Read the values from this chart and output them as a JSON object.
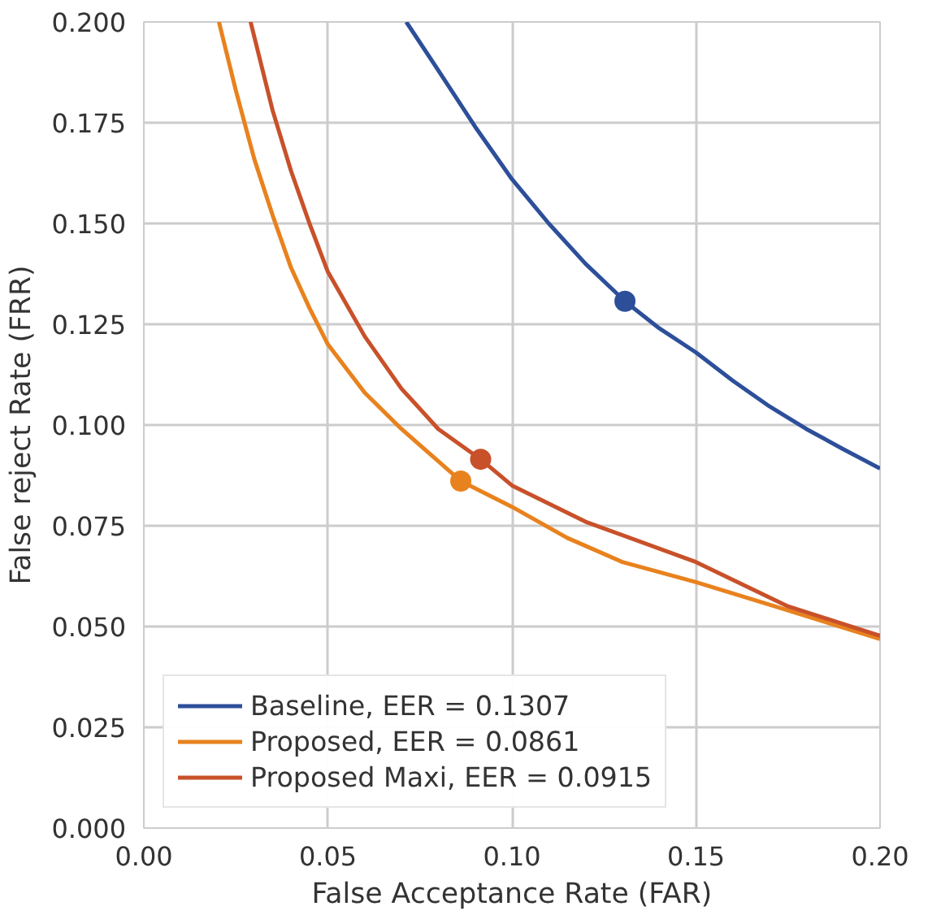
{
  "chart_data": {
    "type": "line",
    "xlabel": "False Acceptance Rate (FAR)",
    "ylabel": "False reject Rate (FRR)",
    "xlim": [
      0,
      0.2
    ],
    "ylim": [
      0,
      0.2
    ],
    "xticks": [
      {
        "value": 0,
        "label": "0.00"
      },
      {
        "value": 0.05,
        "label": "0.05"
      },
      {
        "value": 0.1,
        "label": "0.10"
      },
      {
        "value": 0.15,
        "label": "0.15"
      },
      {
        "value": 0.2,
        "label": "0.20"
      }
    ],
    "yticks": [
      {
        "value": 0,
        "label": "0.000"
      },
      {
        "value": 0.025,
        "label": "0.025"
      },
      {
        "value": 0.05,
        "label": "0.050"
      },
      {
        "value": 0.075,
        "label": "0.075"
      },
      {
        "value": 0.1,
        "label": "0.100"
      },
      {
        "value": 0.125,
        "label": "0.125"
      },
      {
        "value": 0.15,
        "label": "0.150"
      },
      {
        "value": 0.175,
        "label": "0.175"
      },
      {
        "value": 0.2,
        "label": "0.200"
      }
    ],
    "grid": true,
    "legend": "bottom left",
    "marker": "none",
    "line_style": "solid",
    "series": [
      {
        "name": "Baseline, EER = 0.1307",
        "color": "#2d4f9a",
        "x": [
          0.0713,
          0.08,
          0.09,
          0.1,
          0.11,
          0.12,
          0.1307,
          0.14,
          0.15,
          0.16,
          0.17,
          0.18,
          0.19,
          0.2
        ],
        "values": [
          0.2,
          0.188,
          0.174,
          0.161,
          0.15,
          0.14,
          0.1307,
          0.124,
          0.118,
          0.111,
          0.1046,
          0.099,
          0.094,
          0.0892
        ]
      },
      {
        "name": "Proposed, EER = 0.0861",
        "color": "#e8821e",
        "x": [
          0.0204,
          0.025,
          0.03,
          0.035,
          0.04,
          0.045,
          0.05,
          0.06,
          0.07,
          0.08,
          0.0861,
          0.1,
          0.115,
          0.13,
          0.15,
          0.175,
          0.2
        ],
        "values": [
          0.2,
          0.183,
          0.166,
          0.152,
          0.139,
          0.129,
          0.12,
          0.108,
          0.099,
          0.091,
          0.0861,
          0.0797,
          0.072,
          0.066,
          0.061,
          0.054,
          0.0469
        ]
      },
      {
        "name": "Proposed Maxi, EER = 0.0915",
        "color": "#c8512a",
        "x": [
          0.029,
          0.035,
          0.04,
          0.045,
          0.05,
          0.06,
          0.07,
          0.08,
          0.0915,
          0.1,
          0.12,
          0.15,
          0.175,
          0.2
        ],
        "values": [
          0.2,
          0.178,
          0.163,
          0.15,
          0.138,
          0.122,
          0.109,
          0.099,
          0.0915,
          0.085,
          0.076,
          0.066,
          0.055,
          0.0477
        ]
      },
      {
        "type": "scatter",
        "marker": "circle",
        "color": "#2d4f9a",
        "x": [
          0.1307
        ],
        "values": [
          0.1307
        ]
      },
      {
        "type": "scatter",
        "marker": "circle",
        "color": "#e8821e",
        "x": [
          0.0861
        ],
        "values": [
          0.0861
        ]
      },
      {
        "type": "scatter",
        "marker": "circle",
        "color": "#c8512a",
        "x": [
          0.0915
        ],
        "values": [
          0.0915
        ]
      }
    ]
  }
}
